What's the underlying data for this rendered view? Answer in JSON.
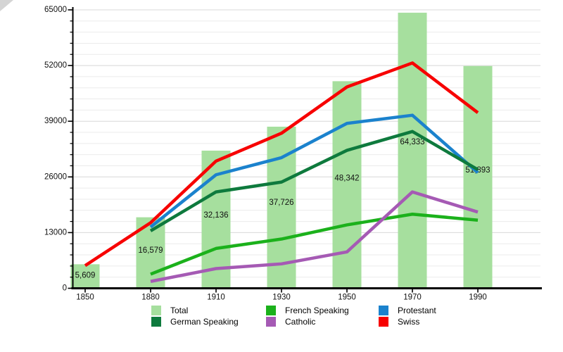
{
  "chart": {
    "y_tick_labels": [
      "0",
      "13000",
      "26000",
      "39000",
      "52000",
      "65000"
    ],
    "x_tick_labels": [
      "1850",
      "1880",
      "1910",
      "1930",
      "1950",
      "1970",
      "1990"
    ]
  },
  "chart_data": {
    "type": "bar+line",
    "title": "",
    "xlabel": "",
    "ylabel": "",
    "categories": [
      1850,
      1880,
      1910,
      1930,
      1950,
      1970,
      1990
    ],
    "ylim": [
      0,
      65000
    ],
    "y_major_step": 13000,
    "y_minor_step": 2600,
    "grid": "horizontal",
    "legend_position": "bottom",
    "bars": {
      "name": "Total",
      "color": "#a6df9e",
      "values": [
        5609,
        16579,
        32136,
        37726,
        48342,
        64333,
        51893
      ],
      "labels": [
        "5,609",
        "16,579",
        "32,136",
        "37,726",
        "48,342",
        "64,333",
        "51,893"
      ]
    },
    "series": [
      {
        "name": "French Speaking",
        "color": "#1bb11b",
        "start": 1,
        "values": [
          3300,
          9300,
          11500,
          14800,
          17300,
          15900
        ]
      },
      {
        "name": "Catholic",
        "color": "#a55ab4",
        "start": 1,
        "values": [
          1600,
          4600,
          5700,
          8500,
          22500,
          17800
        ]
      },
      {
        "name": "Protestant",
        "color": "#1b82cd",
        "start": 1,
        "values": [
          14300,
          26500,
          30500,
          38500,
          40400,
          27000
        ]
      },
      {
        "name": "German Speaking",
        "color": "#0e7a3d",
        "start": 1,
        "values": [
          13400,
          22500,
          24800,
          32200,
          36600,
          27700
        ]
      },
      {
        "name": "Swiss",
        "color": "#f70000",
        "start": 0,
        "values": [
          5300,
          15300,
          29700,
          36200,
          47000,
          52600,
          41000
        ]
      }
    ]
  },
  "legend": {
    "items": [
      {
        "label": "Total",
        "color": "#a6df9e"
      },
      {
        "label": "French Speaking",
        "color": "#1bb11b"
      },
      {
        "label": "Protestant",
        "color": "#1b82cd"
      },
      {
        "label": "German Speaking",
        "color": "#0e7a3d"
      },
      {
        "label": "Catholic",
        "color": "#a55ab4"
      },
      {
        "label": "Swiss",
        "color": "#f70000"
      }
    ]
  }
}
